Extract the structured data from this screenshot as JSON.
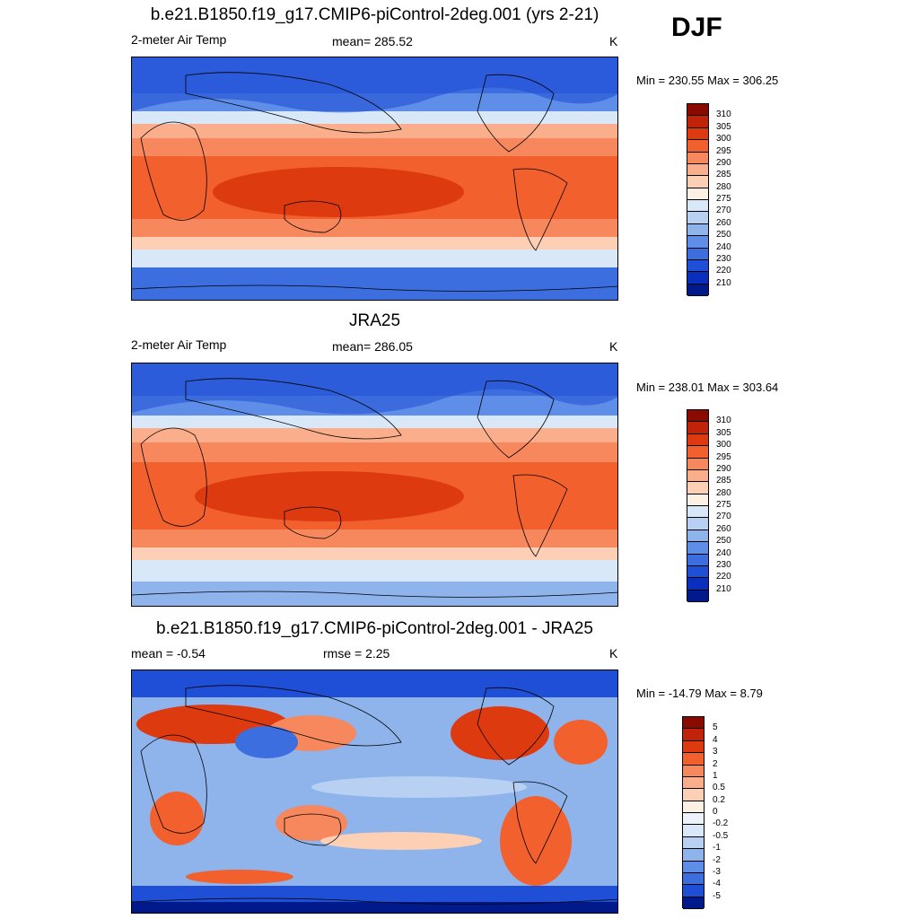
{
  "season": "DJF",
  "panels": [
    {
      "title": "b.e21.B1850.f19_g17.CMIP6-piControl-2deg.001 (yrs 2-21)",
      "variable": "2-meter Air Temp",
      "stat_label": "mean=",
      "stat_value": "285.52",
      "units": "K",
      "minmax": "Min = 230.55 Max = 306.25"
    },
    {
      "title": "JRA25",
      "variable": "2-meter Air Temp",
      "stat_label": "mean=",
      "stat_value": "286.05",
      "units": "K",
      "minmax": "Min = 238.01 Max = 303.64"
    },
    {
      "title": "b.e21.B1850.f19_g17.CMIP6-piControl-2deg.001 - JRA25",
      "mean_text": "mean =  -0.54",
      "rmse_text": "rmse =   2.25",
      "units": "K",
      "minmax": "Min = -14.79 Max =   8.79"
    }
  ],
  "colorbar_abs": {
    "labels": [
      "310",
      "305",
      "300",
      "295",
      "290",
      "285",
      "280",
      "275",
      "270",
      "260",
      "250",
      "240",
      "230",
      "220",
      "210"
    ],
    "colors": [
      "#8b0a00",
      "#c0230a",
      "#de3a10",
      "#f2602e",
      "#f7875c",
      "#fbae8c",
      "#fdd0b5",
      "#fdf0e4",
      "#d9e8f8",
      "#b8d1f2",
      "#8fb4ec",
      "#5f8ee8",
      "#3c6ee0",
      "#1f4fd6",
      "#0a2fbf",
      "#001a8c"
    ]
  },
  "colorbar_diff": {
    "labels": [
      "5",
      "4",
      "3",
      "2",
      "1",
      "0.5",
      "0.2",
      "0",
      "-0.2",
      "-0.5",
      "-1",
      "-2",
      "-3",
      "-4",
      "-5"
    ],
    "colors": [
      "#8b0a00",
      "#c0230a",
      "#de3a10",
      "#f2602e",
      "#f7875c",
      "#fbae8c",
      "#fdd0b5",
      "#fdf0e4",
      "#eef3fb",
      "#d9e8f8",
      "#b8d1f2",
      "#8fb4ec",
      "#5f8ee8",
      "#3c6ee0",
      "#1f4fd6",
      "#001a8c"
    ]
  }
}
